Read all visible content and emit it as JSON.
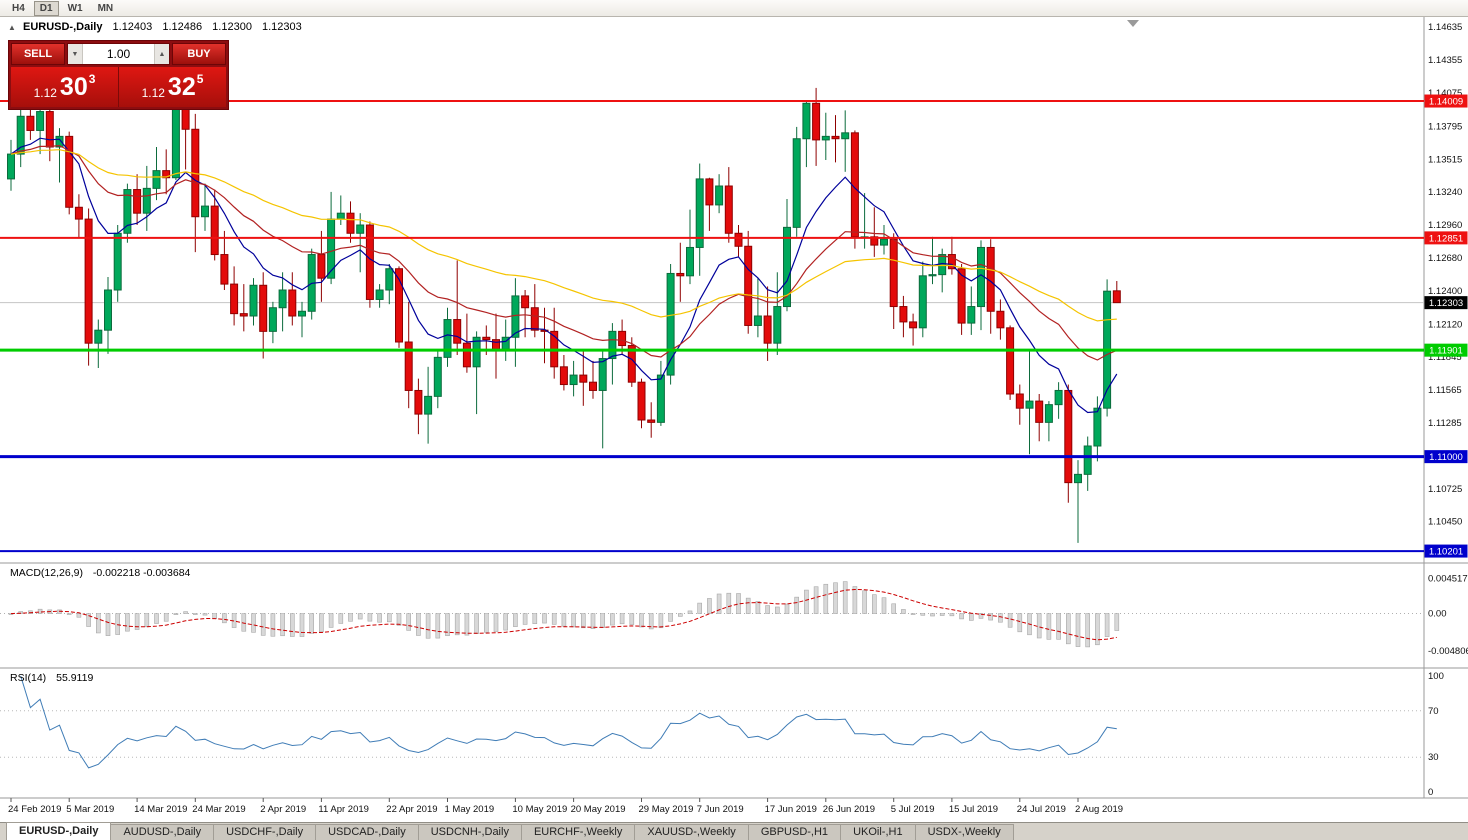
{
  "toolbar": {
    "timeframes": [
      {
        "label": "H4",
        "active": false
      },
      {
        "label": "D1",
        "active": true
      },
      {
        "label": "W1",
        "active": false
      },
      {
        "label": "MN",
        "active": false
      }
    ]
  },
  "chart": {
    "symbol_header": "EURUSD-,Daily",
    "ohlc": {
      "open": "1.12403",
      "high": "1.12486",
      "low": "1.12300",
      "close": "1.12303"
    },
    "trade_panel": {
      "sell_label": "SELL",
      "buy_label": "BUY",
      "volume": "1.00",
      "sell_price_prefix": "1.12",
      "sell_price_big": "30",
      "sell_price_sup": "3",
      "buy_price_prefix": "1.12",
      "buy_price_big": "32",
      "buy_price_sup": "5"
    },
    "icons": {
      "collapse": "▲",
      "vol_down": "▼",
      "vol_up": "▲"
    },
    "price_axis_labels": [
      "1.14635",
      "1.14355",
      "1.14075",
      "1.13795",
      "1.13515",
      "1.13240",
      "1.12960",
      "1.12680",
      "1.12400",
      "1.12120",
      "1.11845",
      "1.11565",
      "1.11285",
      "1.10725",
      "1.10450"
    ],
    "hlines": [
      {
        "price": 1.14009,
        "label": "1.14009",
        "color": "#ee1111",
        "width": 2
      },
      {
        "price": 1.12851,
        "label": "1.12851",
        "color": "#ee1111",
        "width": 2
      },
      {
        "price": 1.11901,
        "label": "1.11901",
        "color": "#00cc00",
        "width": 3
      },
      {
        "price": 1.11,
        "label": "1.11000",
        "color": "#0000cc",
        "width": 3
      },
      {
        "price": 1.10201,
        "label": "1.10201",
        "color": "#0000cc",
        "width": 2
      }
    ],
    "current_price": {
      "value": 1.12303,
      "label": "1.12303",
      "tag_color": "#000000"
    },
    "date_labels": [
      {
        "i": 0,
        "t": "24 Feb 2019"
      },
      {
        "i": 6,
        "t": "5 Mar 2019"
      },
      {
        "i": 13,
        "t": "14 Mar 2019"
      },
      {
        "i": 19,
        "t": "24 Mar 2019"
      },
      {
        "i": 26,
        "t": "2 Apr 2019"
      },
      {
        "i": 32,
        "t": "11 Apr 2019"
      },
      {
        "i": 39,
        "t": "22 Apr 2019"
      },
      {
        "i": 45,
        "t": "1 May 2019"
      },
      {
        "i": 52,
        "t": "10 May 2019"
      },
      {
        "i": 58,
        "t": "20 May 2019"
      },
      {
        "i": 65,
        "t": "29 May 2019"
      },
      {
        "i": 71,
        "t": "7 Jun 2019"
      },
      {
        "i": 78,
        "t": "17 Jun 2019"
      },
      {
        "i": 84,
        "t": "26 Jun 2019"
      },
      {
        "i": 91,
        "t": "5 Jul 2019"
      },
      {
        "i": 97,
        "t": "15 Jul 2019"
      },
      {
        "i": 104,
        "t": "24 Jul 2019"
      },
      {
        "i": 110,
        "t": "2 Aug 2019"
      }
    ],
    "candles": [
      [
        1.1335,
        1.1368,
        1.1325,
        1.1356
      ],
      [
        1.1356,
        1.1398,
        1.1345,
        1.1388
      ],
      [
        1.1388,
        1.1408,
        1.1368,
        1.1376
      ],
      [
        1.1376,
        1.14,
        1.1356,
        1.1392
      ],
      [
        1.1392,
        1.1396,
        1.135,
        1.1362
      ],
      [
        1.1362,
        1.1378,
        1.1332,
        1.1371
      ],
      [
        1.1371,
        1.1375,
        1.1305,
        1.1311
      ],
      [
        1.1311,
        1.1322,
        1.1285,
        1.1301
      ],
      [
        1.1301,
        1.131,
        1.1177,
        1.1196
      ],
      [
        1.1196,
        1.1216,
        1.1175,
        1.1207
      ],
      [
        1.1207,
        1.1252,
        1.1187,
        1.1241
      ],
      [
        1.1241,
        1.1296,
        1.1231,
        1.1289
      ],
      [
        1.1289,
        1.1331,
        1.1281,
        1.1326
      ],
      [
        1.1326,
        1.1339,
        1.1296,
        1.1306
      ],
      [
        1.1306,
        1.1346,
        1.1291,
        1.1327
      ],
      [
        1.1327,
        1.1362,
        1.1317,
        1.1342
      ],
      [
        1.1342,
        1.136,
        1.1322,
        1.1336
      ],
      [
        1.1336,
        1.1437,
        1.1334,
        1.1412
      ],
      [
        1.1412,
        1.142,
        1.1343,
        1.1377
      ],
      [
        1.1377,
        1.139,
        1.1273,
        1.1303
      ],
      [
        1.1303,
        1.1331,
        1.1291,
        1.1312
      ],
      [
        1.1312,
        1.1326,
        1.1266,
        1.1271
      ],
      [
        1.1271,
        1.1291,
        1.1241,
        1.1246
      ],
      [
        1.1246,
        1.1261,
        1.1211,
        1.1221
      ],
      [
        1.1221,
        1.1246,
        1.1206,
        1.1219
      ],
      [
        1.1219,
        1.1251,
        1.1211,
        1.1245
      ],
      [
        1.1245,
        1.1256,
        1.1183,
        1.1206
      ],
      [
        1.1206,
        1.1231,
        1.1196,
        1.1226
      ],
      [
        1.1226,
        1.1256,
        1.1206,
        1.1241
      ],
      [
        1.1241,
        1.1256,
        1.1211,
        1.1219
      ],
      [
        1.1219,
        1.1231,
        1.1201,
        1.1223
      ],
      [
        1.1223,
        1.1276,
        1.1216,
        1.1271
      ],
      [
        1.1271,
        1.1291,
        1.1231,
        1.1251
      ],
      [
        1.1251,
        1.1324,
        1.1246,
        1.1301
      ],
      [
        1.1301,
        1.1321,
        1.1296,
        1.1306
      ],
      [
        1.1306,
        1.1316,
        1.1281,
        1.1289
      ],
      [
        1.1289,
        1.1306,
        1.1256,
        1.1296
      ],
      [
        1.1296,
        1.1299,
        1.1226,
        1.1233
      ],
      [
        1.1233,
        1.1246,
        1.1226,
        1.1241
      ],
      [
        1.1241,
        1.1263,
        1.1229,
        1.1259
      ],
      [
        1.1259,
        1.1261,
        1.1192,
        1.1197
      ],
      [
        1.1197,
        1.1231,
        1.1141,
        1.1156
      ],
      [
        1.1156,
        1.1166,
        1.1119,
        1.1136
      ],
      [
        1.1136,
        1.1176,
        1.1111,
        1.1151
      ],
      [
        1.1151,
        1.1191,
        1.1141,
        1.1184
      ],
      [
        1.1184,
        1.1226,
        1.1176,
        1.1216
      ],
      [
        1.1216,
        1.1266,
        1.1186,
        1.1196
      ],
      [
        1.1196,
        1.1221,
        1.1171,
        1.1176
      ],
      [
        1.1176,
        1.1206,
        1.1136,
        1.1201
      ],
      [
        1.1201,
        1.1211,
        1.1186,
        1.1199
      ],
      [
        1.1199,
        1.1221,
        1.1166,
        1.1191
      ],
      [
        1.1191,
        1.1216,
        1.1181,
        1.1201
      ],
      [
        1.1201,
        1.1251,
        1.1176,
        1.1236
      ],
      [
        1.1236,
        1.1241,
        1.1201,
        1.1226
      ],
      [
        1.1226,
        1.1246,
        1.1201,
        1.1207
      ],
      [
        1.1207,
        1.1226,
        1.1179,
        1.1206
      ],
      [
        1.1206,
        1.1226,
        1.1166,
        1.1176
      ],
      [
        1.1176,
        1.1186,
        1.1156,
        1.1161
      ],
      [
        1.1161,
        1.1181,
        1.1151,
        1.1169
      ],
      [
        1.1169,
        1.1189,
        1.1143,
        1.1163
      ],
      [
        1.1163,
        1.1181,
        1.1149,
        1.1156
      ],
      [
        1.1156,
        1.1189,
        1.1107,
        1.1183
      ],
      [
        1.1183,
        1.1213,
        1.1161,
        1.1206
      ],
      [
        1.1206,
        1.1216,
        1.1186,
        1.1194
      ],
      [
        1.1194,
        1.1201,
        1.1159,
        1.1163
      ],
      [
        1.1163,
        1.1166,
        1.1124,
        1.1131
      ],
      [
        1.1131,
        1.1146,
        1.1116,
        1.1129
      ],
      [
        1.1129,
        1.1181,
        1.1126,
        1.1169
      ],
      [
        1.1169,
        1.1263,
        1.1161,
        1.1255
      ],
      [
        1.1255,
        1.1281,
        1.1231,
        1.1253
      ],
      [
        1.1253,
        1.1309,
        1.1246,
        1.1277
      ],
      [
        1.1277,
        1.1348,
        1.1253,
        1.1335
      ],
      [
        1.1335,
        1.1336,
        1.1291,
        1.1313
      ],
      [
        1.1313,
        1.1339,
        1.1306,
        1.1329
      ],
      [
        1.1329,
        1.1345,
        1.1281,
        1.1289
      ],
      [
        1.1289,
        1.1296,
        1.1269,
        1.1278
      ],
      [
        1.1278,
        1.1291,
        1.1204,
        1.1211
      ],
      [
        1.1211,
        1.1251,
        1.1201,
        1.1219
      ],
      [
        1.1219,
        1.1244,
        1.1181,
        1.1196
      ],
      [
        1.1196,
        1.1256,
        1.1186,
        1.1227
      ],
      [
        1.1227,
        1.1318,
        1.1223,
        1.1294
      ],
      [
        1.1294,
        1.1379,
        1.1286,
        1.1369
      ],
      [
        1.1369,
        1.1401,
        1.1345,
        1.1399
      ],
      [
        1.1399,
        1.1412,
        1.1346,
        1.1368
      ],
      [
        1.1368,
        1.1391,
        1.1351,
        1.1371
      ],
      [
        1.1371,
        1.1389,
        1.1349,
        1.1369
      ],
      [
        1.1369,
        1.1393,
        1.1341,
        1.1374
      ],
      [
        1.1374,
        1.1376,
        1.1276,
        1.1286
      ],
      [
        1.1286,
        1.1323,
        1.1276,
        1.1286
      ],
      [
        1.1286,
        1.1311,
        1.1269,
        1.1279
      ],
      [
        1.1279,
        1.1296,
        1.1271,
        1.1284
      ],
      [
        1.1284,
        1.1289,
        1.1208,
        1.1227
      ],
      [
        1.1227,
        1.1236,
        1.1201,
        1.1214
      ],
      [
        1.1214,
        1.1221,
        1.1194,
        1.1209
      ],
      [
        1.1209,
        1.1265,
        1.1201,
        1.1253
      ],
      [
        1.1253,
        1.1286,
        1.1246,
        1.1254
      ],
      [
        1.1254,
        1.1276,
        1.1239,
        1.1271
      ],
      [
        1.1271,
        1.1286,
        1.1254,
        1.1259
      ],
      [
        1.1259,
        1.1263,
        1.1203,
        1.1213
      ],
      [
        1.1213,
        1.1244,
        1.1203,
        1.1227
      ],
      [
        1.1227,
        1.1283,
        1.1207,
        1.1277
      ],
      [
        1.1277,
        1.1284,
        1.1204,
        1.1223
      ],
      [
        1.1223,
        1.1233,
        1.1199,
        1.1209
      ],
      [
        1.1209,
        1.1211,
        1.1148,
        1.1153
      ],
      [
        1.1153,
        1.1161,
        1.1127,
        1.1141
      ],
      [
        1.1141,
        1.1189,
        1.1102,
        1.1147
      ],
      [
        1.1147,
        1.1153,
        1.1113,
        1.1129
      ],
      [
        1.1129,
        1.1147,
        1.1113,
        1.1144
      ],
      [
        1.1144,
        1.1163,
        1.1132,
        1.1156
      ],
      [
        1.1156,
        1.1161,
        1.1061,
        1.1078
      ],
      [
        1.1078,
        1.1097,
        1.1027,
        1.1085
      ],
      [
        1.1085,
        1.1117,
        1.1071,
        1.1109
      ],
      [
        1.1109,
        1.1151,
        1.1096,
        1.1141
      ],
      [
        1.1141,
        1.125,
        1.1134,
        1.124
      ],
      [
        1.12403,
        1.12486,
        1.123,
        1.12303
      ]
    ]
  },
  "ma_settings": [
    {
      "period": 10,
      "color": "#00009b"
    },
    {
      "period": 24,
      "color": "#b22222"
    },
    {
      "period": 52,
      "color": "#f5c400"
    }
  ],
  "indicators": {
    "macd": {
      "title": "MACD(12,26,9)",
      "values_text": "-0.002218 -0.003684",
      "axis_labels": [
        "0.004517",
        "0.00",
        "-0.004806"
      ],
      "fast": 12,
      "slow": 26,
      "signal": 9
    },
    "rsi": {
      "title": "RSI(14)",
      "value_text": "55.9119",
      "axis_labels": [
        "100",
        "70",
        "30",
        "0"
      ],
      "levels": [
        70,
        30
      ],
      "period": 14
    }
  },
  "colors": {
    "bull": "#00a85b",
    "bull_border": "#0c6b3c",
    "bear": "#e30b0b",
    "bear_border": "#8f0000",
    "macd_bar": "#d8d8d8",
    "macd_bar_border": "#a8a8a8",
    "macd_signal": "#cc0000",
    "rsi_line": "#3f7cb6"
  },
  "tabs": [
    {
      "label": "EURUSD-,Daily",
      "active": true
    },
    {
      "label": "AUDUSD-,Daily",
      "active": false
    },
    {
      "label": "USDCHF-,Daily",
      "active": false
    },
    {
      "label": "USDCAD-,Daily",
      "active": false
    },
    {
      "label": "USDCNH-,Daily",
      "active": false
    },
    {
      "label": "EURCHF-,Weekly",
      "active": false
    },
    {
      "label": "XAUUSD-,Weekly",
      "active": false
    },
    {
      "label": "GBPUSD-,H1",
      "active": false
    },
    {
      "label": "UKOil-,H1",
      "active": false
    },
    {
      "label": "USDX-,Weekly",
      "active": false
    }
  ]
}
